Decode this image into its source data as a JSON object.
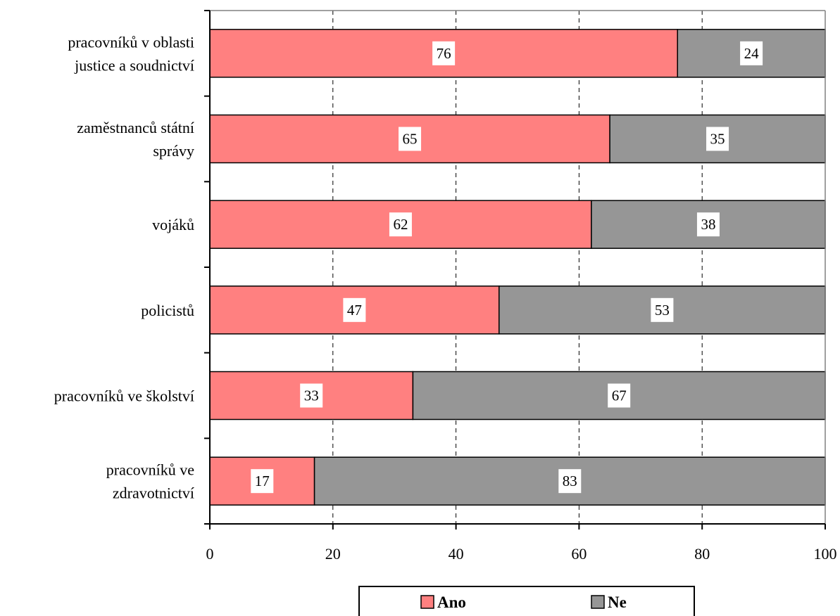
{
  "chart_data": {
    "type": "bar",
    "orientation": "horizontal",
    "stacked": true,
    "categories": [
      [
        "pracovníků v oblasti",
        "justice a soudnictví"
      ],
      [
        "zaměstnanců státní",
        "správy"
      ],
      [
        "vojáků"
      ],
      [
        "policistů"
      ],
      [
        "pracovníků ve školství"
      ],
      [
        "pracovníků ve",
        "zdravotnictví"
      ]
    ],
    "series": [
      {
        "name": "Ano",
        "color": "#ff8080",
        "values": [
          76,
          65,
          62,
          47,
          33,
          17
        ]
      },
      {
        "name": "Ne",
        "color": "#969696",
        "values": [
          24,
          35,
          38,
          53,
          67,
          83
        ]
      }
    ],
    "xlim": [
      0,
      100
    ],
    "xticks": [
      0,
      20,
      40,
      60,
      80,
      100
    ],
    "grid": "vertical-dashed",
    "legend": "bottom"
  }
}
